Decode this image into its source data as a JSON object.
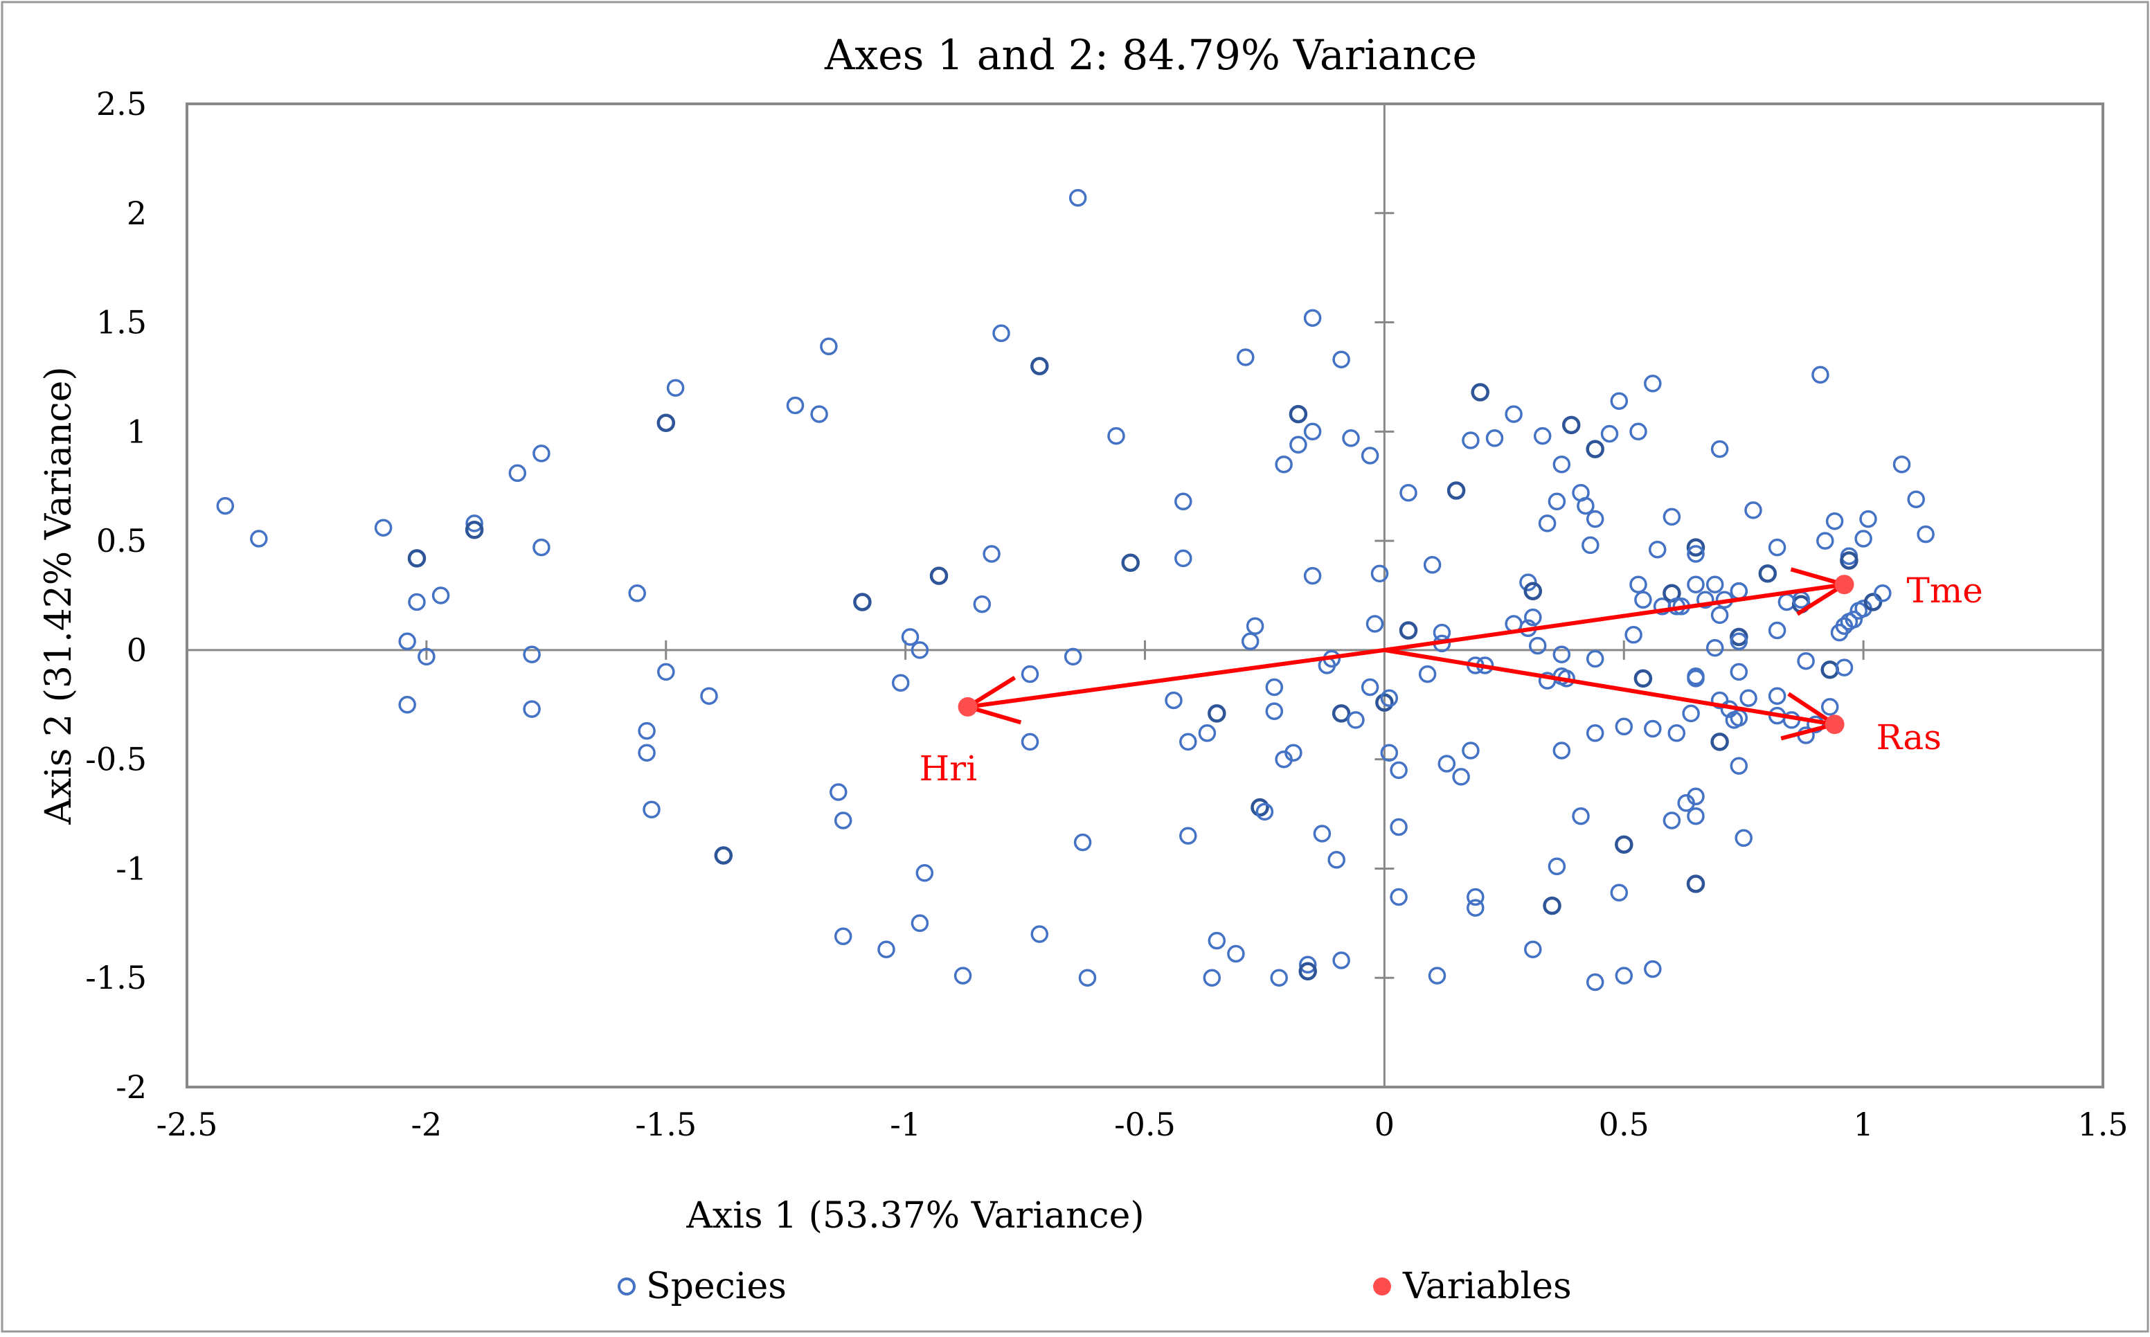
{
  "chart_data": {
    "type": "scatter",
    "title": "Axes 1 and 2: 84.79% Variance",
    "xlabel": "Axis 1 (53.37% Variance)",
    "ylabel": "Axis 2 (31.42% Variance)",
    "xlim": [
      -2.5,
      1.5
    ],
    "ylim": [
      -2,
      2.5
    ],
    "x_ticks": [
      "-2.5",
      "-2",
      "-1.5",
      "-1",
      "-0.5",
      "0",
      "0.5",
      "1",
      "1.5"
    ],
    "y_ticks": [
      "2.5",
      "2",
      "1.5",
      "1",
      "0.5",
      "0",
      "-0.5",
      "-1",
      "-1.5",
      "-2"
    ],
    "grid": false,
    "legend_position": "bottom",
    "legend": [
      "Species",
      "Variables"
    ],
    "colors": {
      "species": "#4472c4",
      "species_dark": "#2e5597",
      "variables": "#ff4d4d",
      "arrows": "#ff0000",
      "frame": "#888888",
      "axes": "#888888"
    },
    "series": [
      {
        "name": "Species",
        "marker": "open-circle",
        "points": [
          [
            -2.42,
            0.66
          ],
          [
            -2.35,
            0.51
          ],
          [
            -2.09,
            0.56
          ],
          [
            -2.02,
            0.42
          ],
          [
            -2.02,
            0.22
          ],
          [
            -1.97,
            0.25
          ],
          [
            -2.04,
            0.04
          ],
          [
            -2.0,
            -0.03
          ],
          [
            -2.04,
            -0.25
          ],
          [
            -1.9,
            0.58
          ],
          [
            -1.9,
            0.55
          ],
          [
            -1.81,
            0.81
          ],
          [
            -1.76,
            0.9
          ],
          [
            -1.76,
            0.47
          ],
          [
            -1.78,
            -0.02
          ],
          [
            -1.78,
            -0.27
          ],
          [
            -1.56,
            0.26
          ],
          [
            -1.5,
            1.04
          ],
          [
            -1.48,
            1.2
          ],
          [
            -1.5,
            -0.1
          ],
          [
            -1.41,
            -0.21
          ],
          [
            -1.54,
            -0.37
          ],
          [
            -1.54,
            -0.47
          ],
          [
            -1.53,
            -0.73
          ],
          [
            -1.38,
            -0.94
          ],
          [
            -1.23,
            1.12
          ],
          [
            -1.18,
            1.08
          ],
          [
            -1.16,
            1.39
          ],
          [
            -1.14,
            -0.65
          ],
          [
            -1.13,
            -0.78
          ],
          [
            -1.13,
            -1.31
          ],
          [
            -1.09,
            0.22
          ],
          [
            -1.04,
            -1.37
          ],
          [
            -1.01,
            -0.15
          ],
          [
            -0.99,
            0.06
          ],
          [
            -0.97,
            0.0
          ],
          [
            -0.97,
            -1.25
          ],
          [
            -0.96,
            -1.02
          ],
          [
            -0.93,
            0.34
          ],
          [
            -0.88,
            -1.49
          ],
          [
            -0.8,
            1.45
          ],
          [
            -0.82,
            0.44
          ],
          [
            -0.84,
            0.21
          ],
          [
            -0.74,
            -0.11
          ],
          [
            -0.74,
            -0.42
          ],
          [
            -0.72,
            1.3
          ],
          [
            -0.72,
            -1.3
          ],
          [
            -0.64,
            2.07
          ],
          [
            -0.63,
            -0.88
          ],
          [
            -0.62,
            -1.5
          ],
          [
            -0.56,
            0.98
          ],
          [
            -0.65,
            -0.03
          ],
          [
            -0.53,
            0.4
          ],
          [
            -0.42,
            0.68
          ],
          [
            -0.42,
            0.42
          ],
          [
            -0.44,
            -0.23
          ],
          [
            -0.41,
            -0.42
          ],
          [
            -0.41,
            -0.85
          ],
          [
            -0.37,
            -0.38
          ],
          [
            -0.35,
            -0.29
          ],
          [
            -0.35,
            -1.33
          ],
          [
            -0.36,
            -1.5
          ],
          [
            -0.31,
            -1.39
          ],
          [
            -0.29,
            1.34
          ],
          [
            -0.27,
            0.11
          ],
          [
            -0.28,
            0.04
          ],
          [
            -0.26,
            -0.72
          ],
          [
            -0.25,
            -0.74
          ],
          [
            -0.23,
            -0.17
          ],
          [
            -0.23,
            -0.28
          ],
          [
            -0.21,
            -0.5
          ],
          [
            -0.22,
            -1.5
          ],
          [
            -0.21,
            0.85
          ],
          [
            -0.18,
            1.08
          ],
          [
            -0.18,
            0.94
          ],
          [
            -0.19,
            -0.47
          ],
          [
            -0.15,
            1.52
          ],
          [
            -0.15,
            1.0
          ],
          [
            -0.15,
            0.34
          ],
          [
            -0.16,
            -1.44
          ],
          [
            -0.16,
            -1.47
          ],
          [
            -0.13,
            -0.84
          ],
          [
            -0.12,
            -0.07
          ],
          [
            -0.11,
            -0.04
          ],
          [
            -0.1,
            -0.96
          ],
          [
            -0.09,
            1.33
          ],
          [
            -0.09,
            -1.42
          ],
          [
            -0.09,
            -0.29
          ],
          [
            -0.07,
            0.97
          ],
          [
            -0.06,
            -0.32
          ],
          [
            -0.03,
            0.89
          ],
          [
            -0.02,
            0.12
          ],
          [
            -0.03,
            -0.17
          ],
          [
            -0.01,
            0.35
          ],
          [
            0.0,
            -0.24
          ],
          [
            0.01,
            -0.47
          ],
          [
            0.01,
            -0.22
          ],
          [
            0.03,
            -0.55
          ],
          [
            0.03,
            -0.81
          ],
          [
            0.03,
            -1.13
          ],
          [
            0.05,
            0.72
          ],
          [
            0.05,
            0.09
          ],
          [
            0.1,
            0.39
          ],
          [
            0.09,
            -0.11
          ],
          [
            0.11,
            -1.49
          ],
          [
            0.12,
            0.08
          ],
          [
            0.12,
            0.03
          ],
          [
            0.13,
            -0.52
          ],
          [
            0.15,
            0.73
          ],
          [
            0.16,
            -0.58
          ],
          [
            0.18,
            0.96
          ],
          [
            0.18,
            -0.46
          ],
          [
            0.19,
            -0.07
          ],
          [
            0.19,
            -1.13
          ],
          [
            0.19,
            -1.18
          ],
          [
            0.2,
            1.18
          ],
          [
            0.21,
            -0.07
          ],
          [
            0.23,
            0.97
          ],
          [
            0.27,
            1.08
          ],
          [
            0.27,
            0.12
          ],
          [
            0.3,
            0.31
          ],
          [
            0.3,
            0.1
          ],
          [
            0.31,
            0.27
          ],
          [
            0.31,
            0.15
          ],
          [
            0.32,
            0.02
          ],
          [
            0.31,
            -1.37
          ],
          [
            0.33,
            0.98
          ],
          [
            0.34,
            0.58
          ],
          [
            0.34,
            -0.14
          ],
          [
            0.35,
            -1.17
          ],
          [
            0.36,
            0.68
          ],
          [
            0.37,
            0.85
          ],
          [
            0.37,
            -0.02
          ],
          [
            0.37,
            -0.12
          ],
          [
            0.37,
            -0.46
          ],
          [
            0.36,
            -0.99
          ],
          [
            0.39,
            1.03
          ],
          [
            0.38,
            -0.13
          ],
          [
            0.41,
            0.72
          ],
          [
            0.41,
            -0.76
          ],
          [
            0.42,
            0.66
          ],
          [
            0.43,
            0.48
          ],
          [
            0.44,
            0.6
          ],
          [
            0.44,
            0.92
          ],
          [
            0.44,
            -0.04
          ],
          [
            0.44,
            -0.38
          ],
          [
            0.44,
            -1.52
          ],
          [
            0.47,
            0.99
          ],
          [
            0.49,
            1.14
          ],
          [
            0.49,
            -1.11
          ],
          [
            0.5,
            -0.89
          ],
          [
            0.5,
            -0.35
          ],
          [
            0.5,
            -1.49
          ],
          [
            0.52,
            0.07
          ],
          [
            0.53,
            1.0
          ],
          [
            0.53,
            0.3
          ],
          [
            0.54,
            0.23
          ],
          [
            0.54,
            -0.13
          ],
          [
            0.56,
            1.22
          ],
          [
            0.57,
            0.46
          ],
          [
            0.58,
            0.2
          ],
          [
            0.56,
            -0.36
          ],
          [
            0.56,
            -1.46
          ],
          [
            0.6,
            0.61
          ],
          [
            0.6,
            0.26
          ],
          [
            0.61,
            0.2
          ],
          [
            0.61,
            -0.38
          ],
          [
            0.6,
            -0.78
          ],
          [
            0.62,
            0.2
          ],
          [
            0.63,
            -0.7
          ],
          [
            0.64,
            -0.29
          ],
          [
            0.65,
            0.47
          ],
          [
            0.65,
            0.44
          ],
          [
            0.65,
            0.3
          ],
          [
            0.65,
            -0.12
          ],
          [
            0.65,
            -0.13
          ],
          [
            0.65,
            -0.67
          ],
          [
            0.65,
            -0.76
          ],
          [
            0.65,
            -1.07
          ],
          [
            0.67,
            0.23
          ],
          [
            0.69,
            0.3
          ],
          [
            0.69,
            0.01
          ],
          [
            0.7,
            0.92
          ],
          [
            0.7,
            0.16
          ],
          [
            0.7,
            -0.23
          ],
          [
            0.7,
            -0.42
          ],
          [
            0.71,
            0.23
          ],
          [
            0.72,
            -0.27
          ],
          [
            0.73,
            -0.32
          ],
          [
            0.74,
            -0.31
          ],
          [
            0.74,
            0.27
          ],
          [
            0.74,
            0.27
          ],
          [
            0.74,
            0.06
          ],
          [
            0.74,
            0.04
          ],
          [
            0.74,
            -0.1
          ],
          [
            0.74,
            -0.53
          ],
          [
            0.75,
            -0.86
          ],
          [
            0.76,
            -0.22
          ],
          [
            0.77,
            0.64
          ],
          [
            0.8,
            0.35
          ],
          [
            0.82,
            0.47
          ],
          [
            0.82,
            0.09
          ],
          [
            0.82,
            -0.21
          ],
          [
            0.82,
            -0.3
          ],
          [
            0.84,
            0.22
          ],
          [
            0.85,
            -0.32
          ],
          [
            0.87,
            0.21
          ],
          [
            0.87,
            0.23
          ],
          [
            0.88,
            -0.05
          ],
          [
            0.88,
            -0.39
          ],
          [
            0.9,
            -0.34
          ],
          [
            0.91,
            1.26
          ],
          [
            0.92,
            0.5
          ],
          [
            0.93,
            -0.09
          ],
          [
            0.93,
            -0.26
          ],
          [
            0.94,
            0.59
          ],
          [
            0.95,
            0.08
          ],
          [
            0.96,
            0.11
          ],
          [
            0.96,
            -0.08
          ],
          [
            0.97,
            0.43
          ],
          [
            0.97,
            0.41
          ],
          [
            0.97,
            0.13
          ],
          [
            0.98,
            0.14
          ],
          [
            0.99,
            0.18
          ],
          [
            1.0,
            0.19
          ],
          [
            1.0,
            0.51
          ],
          [
            1.01,
            0.6
          ],
          [
            1.02,
            0.22
          ],
          [
            1.04,
            0.26
          ],
          [
            1.08,
            0.85
          ],
          [
            1.11,
            0.69
          ],
          [
            1.13,
            0.53
          ]
        ]
      },
      {
        "name": "Variables",
        "marker": "filled-circle",
        "points": [
          {
            "label": "Tme",
            "x": 0.96,
            "y": 0.3
          },
          {
            "label": "Ras",
            "x": 0.94,
            "y": -0.34
          },
          {
            "label": "Hri",
            "x": -0.87,
            "y": -0.26
          }
        ]
      }
    ]
  }
}
